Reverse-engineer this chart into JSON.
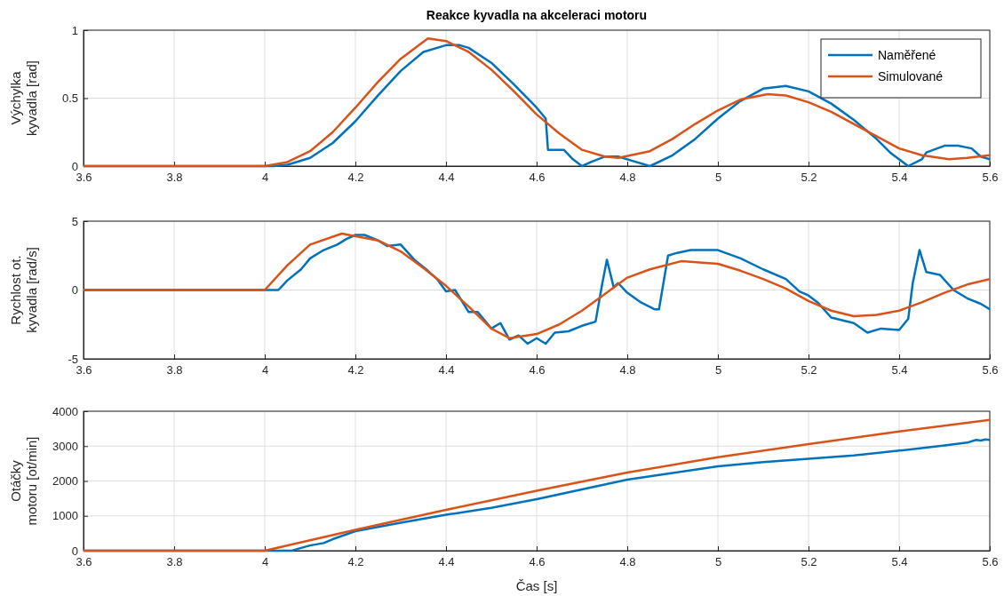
{
  "chart_data": [
    {
      "type": "line",
      "title": "Reakce kyvadla na akceleraci motoru",
      "ylabel": "Výchylka\nkyvadla [rad]",
      "xlim": [
        3.6,
        5.6
      ],
      "xticks": [
        3.6,
        3.8,
        4,
        4.2,
        4.4,
        4.6,
        4.8,
        5,
        5.2,
        5.4,
        5.6
      ],
      "ylim": [
        0,
        1
      ],
      "yticks": [
        0,
        0.5,
        1
      ],
      "grid": true,
      "legend": "top right",
      "series": [
        {
          "name": "Naměřené",
          "color": "#0072bd",
          "x": [
            3.6,
            4.02,
            4.05,
            4.1,
            4.15,
            4.2,
            4.25,
            4.3,
            4.35,
            4.4,
            4.43,
            4.45,
            4.5,
            4.55,
            4.6,
            4.62,
            4.625,
            4.66,
            4.68,
            4.7,
            4.72,
            4.75,
            4.78,
            4.8,
            4.85,
            4.9,
            4.95,
            5.0,
            5.05,
            5.1,
            5.15,
            5.2,
            5.25,
            5.3,
            5.35,
            5.38,
            5.42,
            5.45,
            5.46,
            5.5,
            5.53,
            5.56,
            5.58,
            5.6
          ],
          "values": [
            0,
            0,
            0.01,
            0.06,
            0.17,
            0.33,
            0.52,
            0.7,
            0.84,
            0.89,
            0.89,
            0.87,
            0.76,
            0.6,
            0.43,
            0.35,
            0.12,
            0.12,
            0.05,
            0,
            0.03,
            0.07,
            0.07,
            0.05,
            0,
            0.08,
            0.2,
            0.35,
            0.48,
            0.57,
            0.59,
            0.55,
            0.46,
            0.34,
            0.2,
            0.1,
            0,
            0.05,
            0.1,
            0.15,
            0.15,
            0.13,
            0.07,
            0.05
          ]
        },
        {
          "name": "Simulované",
          "color": "#d95319",
          "x": [
            3.6,
            4.0,
            4.05,
            4.1,
            4.15,
            4.2,
            4.25,
            4.3,
            4.36,
            4.4,
            4.45,
            4.5,
            4.55,
            4.6,
            4.65,
            4.7,
            4.75,
            4.78,
            4.85,
            4.9,
            4.95,
            5.0,
            5.05,
            5.11,
            5.15,
            5.2,
            5.25,
            5.3,
            5.35,
            5.4,
            5.45,
            5.51,
            5.55,
            5.6
          ],
          "values": [
            0,
            0,
            0.03,
            0.11,
            0.25,
            0.43,
            0.62,
            0.79,
            0.94,
            0.92,
            0.84,
            0.71,
            0.55,
            0.38,
            0.24,
            0.12,
            0.07,
            0.06,
            0.11,
            0.2,
            0.31,
            0.41,
            0.49,
            0.53,
            0.52,
            0.47,
            0.4,
            0.31,
            0.22,
            0.13,
            0.08,
            0.05,
            0.06,
            0.08
          ]
        }
      ]
    },
    {
      "type": "line",
      "ylabel": "Rychlost ot.\nkyvadla [rad/s]",
      "xlim": [
        3.6,
        5.6
      ],
      "xticks": [
        3.6,
        3.8,
        4,
        4.2,
        4.4,
        4.6,
        4.8,
        5,
        5.2,
        5.4,
        5.6
      ],
      "ylim": [
        -5,
        5
      ],
      "yticks": [
        -5,
        0,
        5
      ],
      "grid": true,
      "series": [
        {
          "color": "#0072bd",
          "x": [
            3.6,
            4.03,
            4.05,
            4.08,
            4.1,
            4.13,
            4.16,
            4.18,
            4.2,
            4.22,
            4.25,
            4.27,
            4.3,
            4.33,
            4.36,
            4.38,
            4.4,
            4.42,
            4.45,
            4.47,
            4.5,
            4.52,
            4.54,
            4.56,
            4.58,
            4.6,
            4.62,
            4.64,
            4.67,
            4.7,
            4.73,
            4.745,
            4.755,
            4.77,
            4.78,
            4.8,
            4.83,
            4.86,
            4.87,
            4.89,
            4.91,
            4.94,
            4.96,
            5.0,
            5.05,
            5.1,
            5.15,
            5.18,
            5.2,
            5.22,
            5.25,
            5.3,
            5.33,
            5.36,
            5.4,
            5.42,
            5.43,
            5.445,
            5.46,
            5.49,
            5.52,
            5.55,
            5.58,
            5.6
          ],
          "values": [
            0,
            0,
            0.7,
            1.5,
            2.3,
            2.9,
            3.3,
            3.7,
            4.0,
            4.0,
            3.6,
            3.2,
            3.3,
            2.2,
            1.4,
            0.8,
            -0.1,
            0,
            -1.6,
            -1.6,
            -2.8,
            -2.4,
            -3.6,
            -3.3,
            -3.9,
            -3.5,
            -3.9,
            -3.1,
            -3,
            -2.6,
            -2.3,
            0.5,
            2.2,
            0.2,
            0.5,
            -0.2,
            -0.9,
            -1.4,
            -1.4,
            2.5,
            2.7,
            2.9,
            2.9,
            2.9,
            2.3,
            1.5,
            0.8,
            -0.1,
            -0.4,
            -0.9,
            -2,
            -2.4,
            -3.1,
            -2.8,
            -2.9,
            -2.1,
            0.5,
            2.9,
            1.3,
            1.1,
            0,
            -0.6,
            -1,
            -1.4
          ]
        },
        {
          "color": "#d95319",
          "x": [
            3.6,
            4.0,
            4.05,
            4.1,
            4.17,
            4.25,
            4.3,
            4.35,
            4.4,
            4.45,
            4.5,
            4.54,
            4.6,
            4.65,
            4.7,
            4.75,
            4.8,
            4.85,
            4.92,
            5.0,
            5.05,
            5.1,
            5.15,
            5.2,
            5.25,
            5.3,
            5.35,
            5.4,
            5.45,
            5.5,
            5.55,
            5.6
          ],
          "values": [
            0,
            0,
            1.8,
            3.3,
            4.1,
            3.6,
            2.8,
            1.6,
            0.3,
            -1.2,
            -2.8,
            -3.5,
            -3.2,
            -2.5,
            -1.5,
            -0.3,
            0.9,
            1.5,
            2.1,
            1.9,
            1.4,
            0.8,
            0.1,
            -0.8,
            -1.5,
            -1.9,
            -1.8,
            -1.5,
            -0.9,
            -0.2,
            0.4,
            0.8
          ]
        }
      ]
    },
    {
      "type": "line",
      "xlabel": "Čas [s]",
      "ylabel": "Otáčky\nmotoru [ot/min]",
      "xlim": [
        3.6,
        5.6
      ],
      "xticks": [
        3.6,
        3.8,
        4,
        4.2,
        4.4,
        4.6,
        4.8,
        5,
        5.2,
        5.4,
        5.6
      ],
      "ylim": [
        0,
        4000
      ],
      "yticks": [
        0,
        1000,
        2000,
        3000,
        4000
      ],
      "grid": true,
      "series": [
        {
          "color": "#0072bd",
          "x": [
            3.6,
            4.06,
            4.08,
            4.1,
            4.13,
            4.15,
            4.2,
            4.3,
            4.4,
            4.5,
            4.6,
            4.7,
            4.8,
            4.9,
            5.0,
            5.1,
            5.2,
            5.3,
            5.4,
            5.5,
            5.55,
            5.57,
            5.58,
            5.59,
            5.6
          ],
          "values": [
            0,
            0,
            80,
            150,
            220,
            330,
            560,
            800,
            1030,
            1230,
            1480,
            1760,
            2040,
            2230,
            2420,
            2540,
            2640,
            2730,
            2870,
            3020,
            3100,
            3180,
            3160,
            3190,
            3180
          ]
        },
        {
          "color": "#d95319",
          "x": [
            3.6,
            4.0,
            4.2,
            4.4,
            4.6,
            4.8,
            5.0,
            5.2,
            5.4,
            5.6
          ],
          "values": [
            0,
            0,
            600,
            1170,
            1720,
            2240,
            2680,
            3060,
            3420,
            3750
          ]
        }
      ]
    }
  ]
}
